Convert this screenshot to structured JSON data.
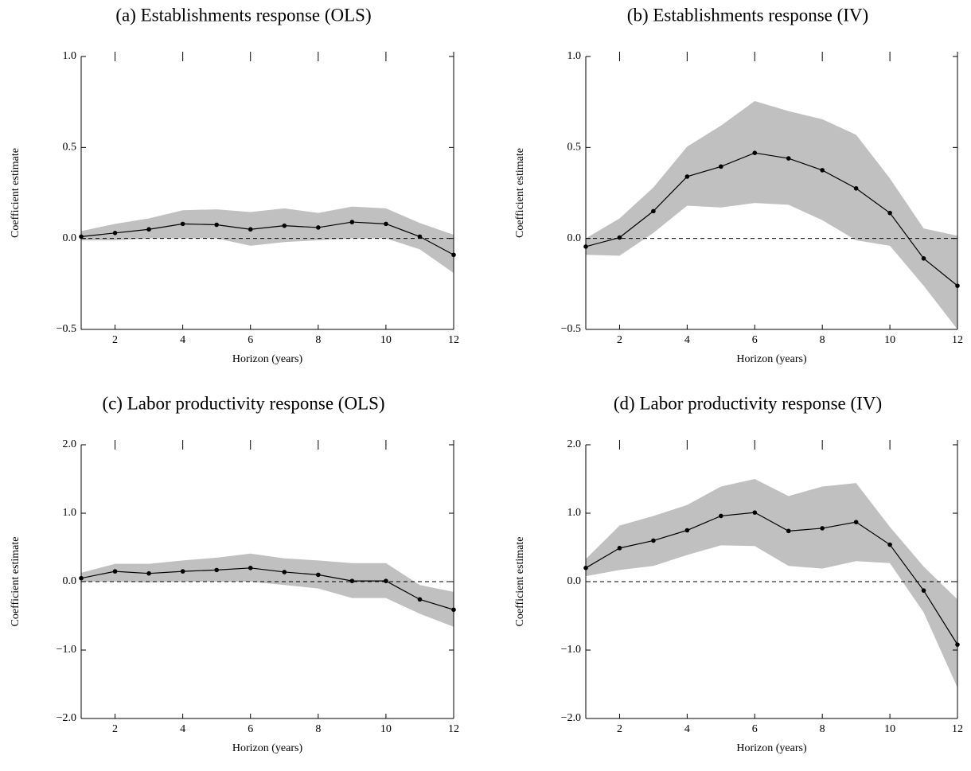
{
  "chart_data": [
    {
      "type": "line",
      "title": "(a) Establishments response (OLS)",
      "xlabel": "Horizon (years)",
      "ylabel": "Coefficient estimate",
      "x": [
        1,
        2,
        3,
        4,
        5,
        6,
        7,
        8,
        9,
        10,
        11,
        12
      ],
      "values": [
        0.01,
        0.03,
        0.05,
        0.08,
        0.075,
        0.05,
        0.07,
        0.06,
        0.09,
        0.08,
        0.01,
        -0.09
      ],
      "lower": [
        -0.01,
        -0.01,
        0.0,
        0.0,
        0.0,
        -0.04,
        -0.02,
        -0.01,
        0.0,
        0.0,
        -0.06,
        -0.19
      ],
      "upper": [
        0.04,
        0.08,
        0.11,
        0.155,
        0.16,
        0.145,
        0.165,
        0.14,
        0.175,
        0.165,
        0.085,
        0.02
      ],
      "color": "#000000",
      "band_color": "#c0c0c0",
      "hline": 0,
      "xlim": [
        1,
        12
      ],
      "ylim": [
        -0.5,
        1
      ],
      "xticks": [
        2,
        4,
        6,
        8,
        10,
        12
      ],
      "yticks": [
        {
          "value": -0.5,
          "label": "−0.5"
        },
        {
          "value": 0,
          "label": "0.0"
        },
        {
          "value": 0.5,
          "label": "0.5"
        },
        {
          "value": 1,
          "label": "1.0"
        }
      ]
    },
    {
      "type": "line",
      "title": "(b) Establishments response (IV)",
      "xlabel": "Horizon (years)",
      "ylabel": "Coefficient estimate",
      "x": [
        1,
        2,
        3,
        4,
        5,
        6,
        7,
        8,
        9,
        10,
        11,
        12
      ],
      "values": [
        -0.045,
        0.005,
        0.15,
        0.34,
        0.395,
        0.47,
        0.44,
        0.375,
        0.275,
        0.14,
        -0.11,
        -0.26
      ],
      "lower": [
        -0.09,
        -0.095,
        0.03,
        0.18,
        0.17,
        0.195,
        0.185,
        0.1,
        -0.01,
        -0.04,
        -0.26,
        -0.5
      ],
      "upper": [
        0.0,
        0.11,
        0.28,
        0.505,
        0.62,
        0.755,
        0.7,
        0.655,
        0.57,
        0.33,
        0.055,
        0.015
      ],
      "color": "#000000",
      "band_color": "#c0c0c0",
      "hline": 0,
      "xlim": [
        1,
        12
      ],
      "ylim": [
        -0.5,
        1
      ],
      "xticks": [
        2,
        4,
        6,
        8,
        10,
        12
      ],
      "yticks": [
        {
          "value": -0.5,
          "label": "−0.5"
        },
        {
          "value": 0,
          "label": "0.0"
        },
        {
          "value": 0.5,
          "label": "0.5"
        },
        {
          "value": 1,
          "label": "1.0"
        }
      ]
    },
    {
      "type": "line",
      "title": "(c) Labor productivity response (OLS)",
      "xlabel": "Horizon (years)",
      "ylabel": "Coefficient estimate",
      "x": [
        1,
        2,
        3,
        4,
        5,
        6,
        7,
        8,
        9,
        10,
        11,
        12
      ],
      "values": [
        0.05,
        0.15,
        0.12,
        0.15,
        0.17,
        0.2,
        0.14,
        0.1,
        0.01,
        0.01,
        -0.26,
        -0.41
      ],
      "lower": [
        0.0,
        0.0,
        -0.01,
        0.0,
        0.0,
        0.0,
        -0.05,
        -0.1,
        -0.24,
        -0.24,
        -0.47,
        -0.66
      ],
      "upper": [
        0.13,
        0.26,
        0.26,
        0.31,
        0.35,
        0.41,
        0.34,
        0.31,
        0.27,
        0.27,
        -0.05,
        -0.15
      ],
      "color": "#000000",
      "band_color": "#c0c0c0",
      "hline": 0,
      "xlim": [
        1,
        12
      ],
      "ylim": [
        -2,
        2
      ],
      "xticks": [
        2,
        4,
        6,
        8,
        10,
        12
      ],
      "yticks": [
        {
          "value": -2,
          "label": "−2.0"
        },
        {
          "value": -1,
          "label": "−1.0"
        },
        {
          "value": 0,
          "label": "0.0"
        },
        {
          "value": 1,
          "label": "1.0"
        },
        {
          "value": 2,
          "label": "2.0"
        }
      ]
    },
    {
      "type": "line",
      "title": "(d) Labor productivity response (IV)",
      "xlabel": "Horizon (years)",
      "ylabel": "Coefficient estimate",
      "x": [
        1,
        2,
        3,
        4,
        5,
        6,
        7,
        8,
        9,
        10,
        11,
        12
      ],
      "values": [
        0.2,
        0.49,
        0.6,
        0.75,
        0.96,
        1.01,
        0.74,
        0.78,
        0.87,
        0.54,
        -0.13,
        -0.92
      ],
      "lower": [
        0.08,
        0.17,
        0.23,
        0.39,
        0.53,
        0.52,
        0.23,
        0.19,
        0.3,
        0.27,
        -0.45,
        -1.55
      ],
      "upper": [
        0.33,
        0.82,
        0.96,
        1.12,
        1.39,
        1.5,
        1.25,
        1.39,
        1.44,
        0.8,
        0.22,
        -0.26
      ],
      "color": "#000000",
      "band_color": "#c0c0c0",
      "hline": 0,
      "xlim": [
        1,
        12
      ],
      "ylim": [
        -2,
        2
      ],
      "xticks": [
        2,
        4,
        6,
        8,
        10,
        12
      ],
      "yticks": [
        {
          "value": -2,
          "label": "−2.0"
        },
        {
          "value": -1,
          "label": "−1.0"
        },
        {
          "value": 0,
          "label": "0.0"
        },
        {
          "value": 1,
          "label": "1.0"
        },
        {
          "value": 2,
          "label": "2.0"
        }
      ]
    }
  ]
}
